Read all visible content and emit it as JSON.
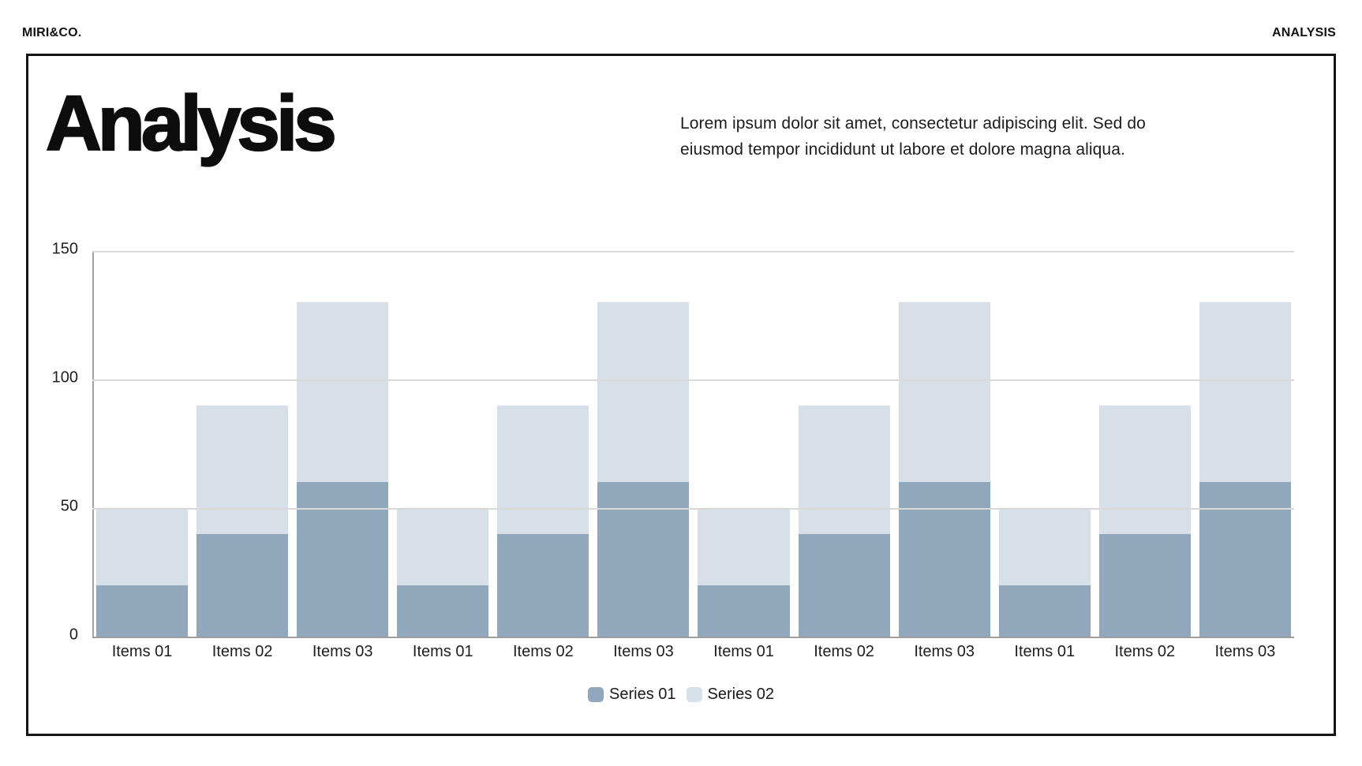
{
  "header": {
    "brand": "MIRI&CO.",
    "page_label": "ANALYSIS"
  },
  "content": {
    "title": "Analysis",
    "description_lines": [
      "Lorem ipsum dolor sit amet, consectetur adipiscing elit. Sed do",
      "eiusmod tempor incididunt ut labore et dolore magna aliqua."
    ]
  },
  "chart_data": {
    "type": "bar",
    "stacked": true,
    "categories": [
      "Items 01",
      "Items 02",
      "Items 03",
      "Items 01",
      "Items 02",
      "Items 03",
      "Items 01",
      "Items 02",
      "Items 03",
      "Items 01",
      "Items 02",
      "Items 03"
    ],
    "series": [
      {
        "name": "Series 01",
        "color": "#90a7bc",
        "values": [
          20,
          40,
          60,
          20,
          40,
          60,
          20,
          40,
          60,
          20,
          40,
          60
        ]
      },
      {
        "name": "Series 02",
        "color": "#d7dfe9",
        "values": [
          30,
          50,
          70,
          30,
          50,
          70,
          30,
          50,
          70,
          30,
          50,
          70
        ]
      }
    ],
    "stack_totals": [
      50,
      90,
      130,
      50,
      90,
      130,
      50,
      90,
      130,
      50,
      90,
      130
    ],
    "y_ticks": [
      0,
      50,
      100,
      150
    ],
    "ylim": [
      0,
      150
    ],
    "grid": true,
    "gridline_color": "#d9d9d9",
    "axis_color": "#a0a0a0",
    "legend_position": "bottom",
    "title": "",
    "xlabel": "",
    "ylabel": ""
  }
}
